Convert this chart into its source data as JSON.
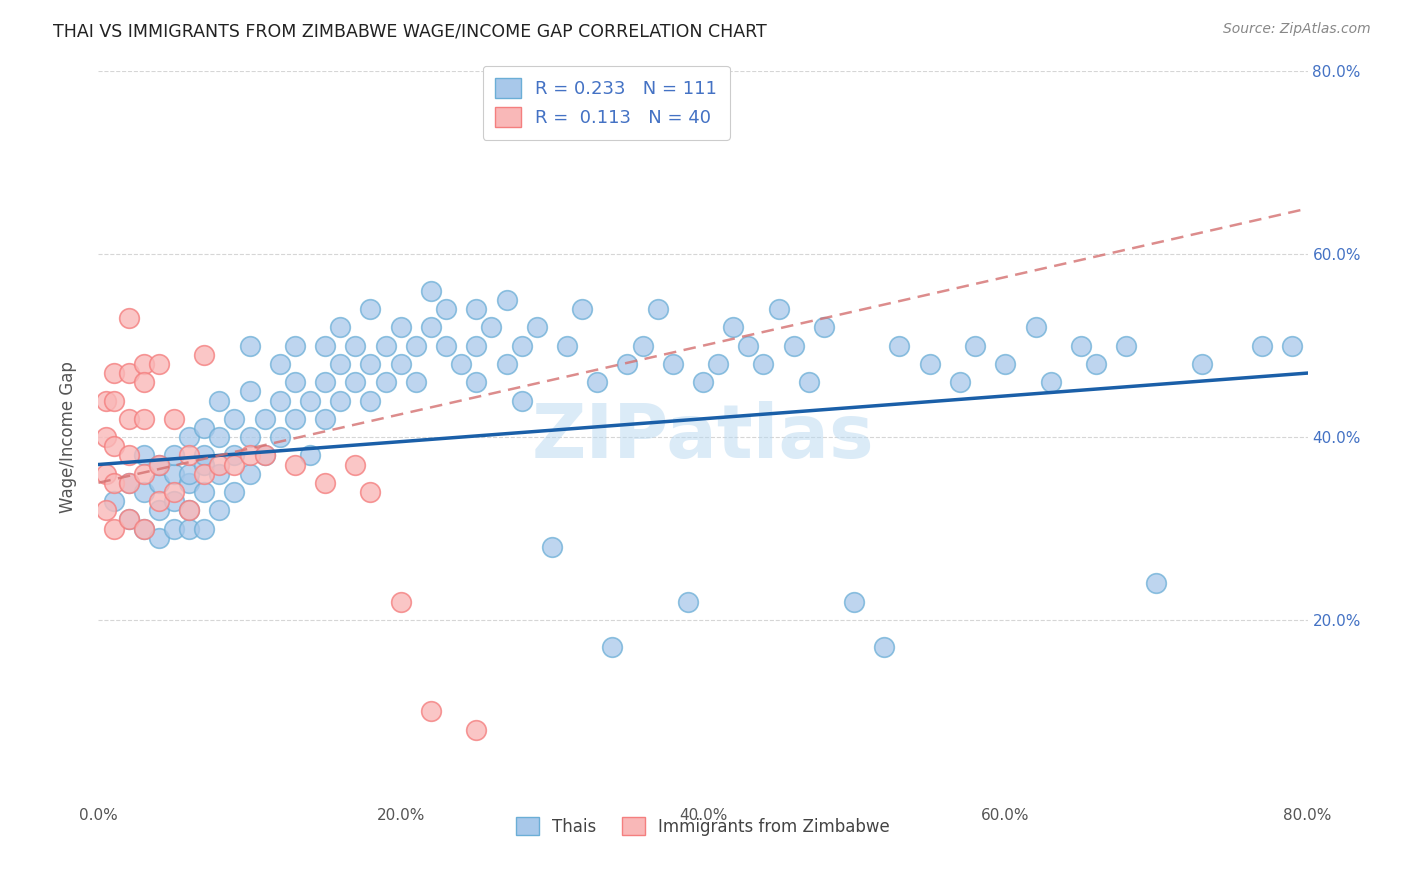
{
  "title": "THAI VS IMMIGRANTS FROM ZIMBABWE WAGE/INCOME GAP CORRELATION CHART",
  "source": "Source: ZipAtlas.com",
  "ylabel": "Wage/Income Gap",
  "xlim": [
    0.0,
    0.8
  ],
  "ylim": [
    0.0,
    0.8
  ],
  "xtick_labels": [
    "0.0%",
    "",
    "20.0%",
    "",
    "40.0%",
    "",
    "60.0%",
    "",
    "80.0%"
  ],
  "xtick_vals": [
    0.0,
    0.1,
    0.2,
    0.3,
    0.4,
    0.5,
    0.6,
    0.7,
    0.8
  ],
  "ytick_labels": [
    "20.0%",
    "40.0%",
    "60.0%",
    "80.0%"
  ],
  "ytick_vals": [
    0.2,
    0.4,
    0.6,
    0.8
  ],
  "blue_color": "#a8c8ea",
  "blue_edge_color": "#6baed6",
  "pink_color": "#f9b8b8",
  "pink_edge_color": "#f47f7f",
  "blue_line_color": "#1a5fa8",
  "pink_line_color": "#d4808080",
  "grid_color": "#cccccc",
  "watermark_color": "#b8d8f0",
  "legend_R1": "0.233",
  "legend_N1": "111",
  "legend_R2": "0.113",
  "legend_N2": "40",
  "label1": "Thais",
  "label2": "Immigrants from Zimbabwe",
  "blue_trend_y_start": 0.37,
  "blue_trend_y_end": 0.47,
  "pink_trend_y_start": 0.35,
  "pink_trend_y_end": 0.65,
  "blue_scatter_x": [
    0.01,
    0.02,
    0.02,
    0.03,
    0.03,
    0.03,
    0.04,
    0.04,
    0.04,
    0.04,
    0.05,
    0.05,
    0.05,
    0.05,
    0.06,
    0.06,
    0.06,
    0.06,
    0.06,
    0.07,
    0.07,
    0.07,
    0.07,
    0.07,
    0.08,
    0.08,
    0.08,
    0.08,
    0.09,
    0.09,
    0.09,
    0.1,
    0.1,
    0.1,
    0.1,
    0.11,
    0.11,
    0.12,
    0.12,
    0.12,
    0.13,
    0.13,
    0.13,
    0.14,
    0.14,
    0.15,
    0.15,
    0.15,
    0.16,
    0.16,
    0.16,
    0.17,
    0.17,
    0.18,
    0.18,
    0.18,
    0.19,
    0.19,
    0.2,
    0.2,
    0.21,
    0.21,
    0.22,
    0.22,
    0.23,
    0.23,
    0.24,
    0.25,
    0.25,
    0.25,
    0.26,
    0.27,
    0.27,
    0.28,
    0.28,
    0.29,
    0.3,
    0.31,
    0.32,
    0.33,
    0.34,
    0.35,
    0.36,
    0.37,
    0.38,
    0.39,
    0.4,
    0.41,
    0.42,
    0.43,
    0.44,
    0.45,
    0.46,
    0.47,
    0.48,
    0.5,
    0.52,
    0.53,
    0.55,
    0.57,
    0.58,
    0.6,
    0.62,
    0.63,
    0.65,
    0.66,
    0.68,
    0.7,
    0.73,
    0.77,
    0.79
  ],
  "blue_scatter_y": [
    0.33,
    0.35,
    0.31,
    0.34,
    0.38,
    0.3,
    0.35,
    0.29,
    0.37,
    0.32,
    0.36,
    0.3,
    0.33,
    0.38,
    0.35,
    0.32,
    0.36,
    0.4,
    0.3,
    0.34,
    0.37,
    0.41,
    0.3,
    0.38,
    0.36,
    0.4,
    0.32,
    0.44,
    0.38,
    0.42,
    0.34,
    0.4,
    0.45,
    0.36,
    0.5,
    0.42,
    0.38,
    0.44,
    0.4,
    0.48,
    0.46,
    0.42,
    0.5,
    0.44,
    0.38,
    0.46,
    0.42,
    0.5,
    0.48,
    0.44,
    0.52,
    0.46,
    0.5,
    0.48,
    0.44,
    0.54,
    0.5,
    0.46,
    0.52,
    0.48,
    0.5,
    0.46,
    0.52,
    0.56,
    0.5,
    0.54,
    0.48,
    0.5,
    0.46,
    0.54,
    0.52,
    0.48,
    0.55,
    0.5,
    0.44,
    0.52,
    0.28,
    0.5,
    0.54,
    0.46,
    0.17,
    0.48,
    0.5,
    0.54,
    0.48,
    0.22,
    0.46,
    0.48,
    0.52,
    0.5,
    0.48,
    0.54,
    0.5,
    0.46,
    0.52,
    0.22,
    0.17,
    0.5,
    0.48,
    0.46,
    0.5,
    0.48,
    0.52,
    0.46,
    0.5,
    0.48,
    0.5,
    0.24,
    0.48,
    0.5,
    0.5
  ],
  "pink_scatter_x": [
    0.005,
    0.005,
    0.005,
    0.005,
    0.01,
    0.01,
    0.01,
    0.01,
    0.01,
    0.02,
    0.02,
    0.02,
    0.02,
    0.02,
    0.02,
    0.03,
    0.03,
    0.03,
    0.03,
    0.03,
    0.04,
    0.04,
    0.04,
    0.05,
    0.05,
    0.06,
    0.06,
    0.07,
    0.07,
    0.08,
    0.09,
    0.1,
    0.11,
    0.13,
    0.15,
    0.17,
    0.18,
    0.2,
    0.22,
    0.25
  ],
  "pink_scatter_y": [
    0.32,
    0.36,
    0.4,
    0.44,
    0.3,
    0.35,
    0.39,
    0.44,
    0.47,
    0.31,
    0.35,
    0.38,
    0.42,
    0.47,
    0.53,
    0.3,
    0.36,
    0.42,
    0.48,
    0.46,
    0.33,
    0.37,
    0.48,
    0.34,
    0.42,
    0.32,
    0.38,
    0.36,
    0.49,
    0.37,
    0.37,
    0.38,
    0.38,
    0.37,
    0.35,
    0.37,
    0.34,
    0.22,
    0.1,
    0.08
  ]
}
